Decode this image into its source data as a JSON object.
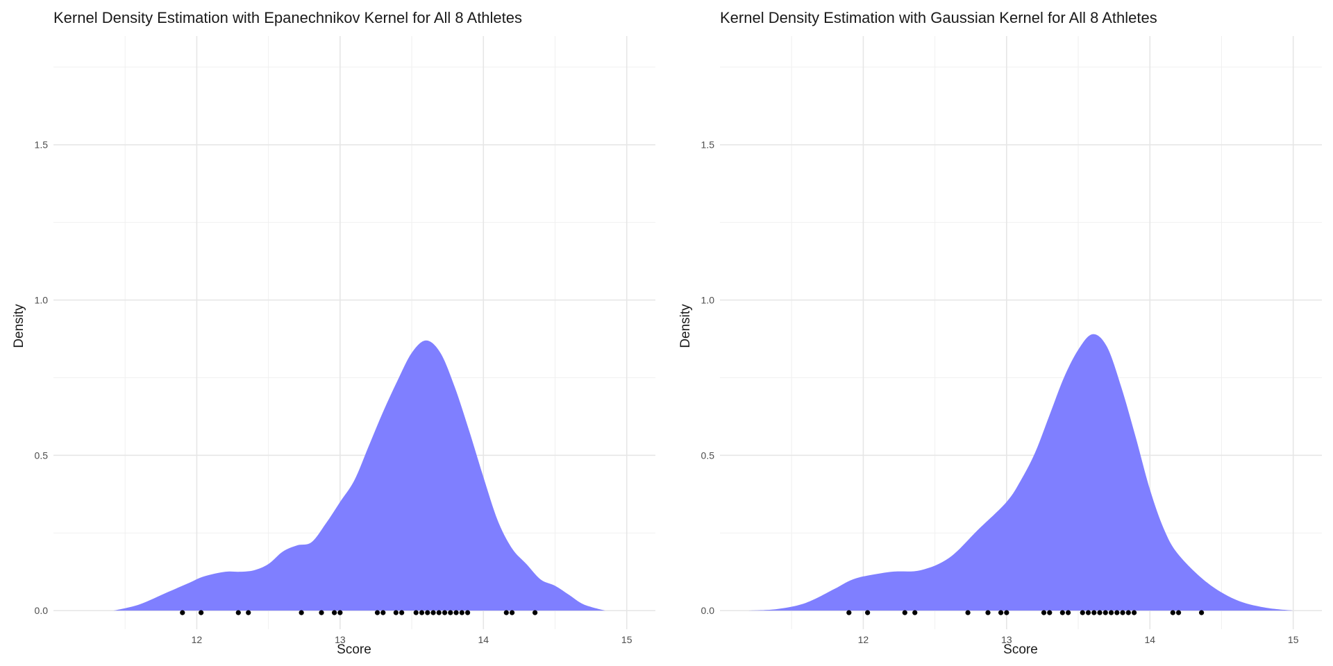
{
  "chart_data": [
    {
      "type": "area",
      "title": "Kernel Density Estimation with Epanechnikov Kernel for All 8 Athletes",
      "xlabel": "Score",
      "ylabel": "Density",
      "xlim": [
        11.0,
        15.2
      ],
      "ylim": [
        -0.06,
        1.85
      ],
      "x_ticks": [
        12,
        13,
        14,
        15
      ],
      "x_tick_labels": [
        "12",
        "13",
        "14",
        "15"
      ],
      "y_ticks": [
        0.0,
        0.5,
        1.0,
        1.5
      ],
      "y_tick_labels": [
        "0.0",
        "0.5",
        "1.0",
        "1.5"
      ],
      "grid": true,
      "fill_color": "#7f7fff",
      "point_color": "#000000",
      "density": {
        "x": [
          11.42,
          11.6,
          11.8,
          11.95,
          12.05,
          12.2,
          12.3,
          12.4,
          12.5,
          12.6,
          12.7,
          12.8,
          12.9,
          13.0,
          13.1,
          13.2,
          13.3,
          13.4,
          13.5,
          13.6,
          13.7,
          13.8,
          13.9,
          14.0,
          14.1,
          14.2,
          14.3,
          14.4,
          14.5,
          14.6,
          14.7,
          14.85
        ],
        "y": [
          0.0,
          0.02,
          0.06,
          0.09,
          0.11,
          0.125,
          0.125,
          0.13,
          0.15,
          0.19,
          0.21,
          0.22,
          0.28,
          0.35,
          0.42,
          0.53,
          0.64,
          0.74,
          0.83,
          0.87,
          0.83,
          0.72,
          0.58,
          0.43,
          0.29,
          0.2,
          0.15,
          0.1,
          0.08,
          0.05,
          0.02,
          0.0
        ]
      },
      "points": [
        11.9,
        12.03,
        12.29,
        12.36,
        12.73,
        12.87,
        12.96,
        13.0,
        13.26,
        13.3,
        13.39,
        13.43,
        13.53,
        13.57,
        13.61,
        13.65,
        13.69,
        13.73,
        13.77,
        13.81,
        13.85,
        13.89,
        14.16,
        14.2,
        14.36
      ]
    },
    {
      "type": "area",
      "title": "Kernel Density Estimation with Gaussian Kernel for All 8 Athletes",
      "xlabel": "Score",
      "ylabel": "Density",
      "xlim": [
        11.0,
        15.2
      ],
      "ylim": [
        -0.06,
        1.85
      ],
      "x_ticks": [
        12,
        13,
        14,
        15
      ],
      "x_tick_labels": [
        "12",
        "13",
        "14",
        "15"
      ],
      "y_ticks": [
        0.0,
        0.5,
        1.0,
        1.5
      ],
      "y_tick_labels": [
        "0.0",
        "0.5",
        "1.0",
        "1.5"
      ],
      "grid": true,
      "fill_color": "#7f7fff",
      "point_color": "#000000",
      "density": {
        "x": [
          11.2,
          11.4,
          11.6,
          11.8,
          11.9,
          12.0,
          12.2,
          12.4,
          12.6,
          12.8,
          13.0,
          13.1,
          13.2,
          13.3,
          13.4,
          13.5,
          13.6,
          13.7,
          13.8,
          13.9,
          14.0,
          14.1,
          14.2,
          14.4,
          14.6,
          14.8,
          15.0
        ],
        "y": [
          0.0,
          0.005,
          0.025,
          0.07,
          0.095,
          0.11,
          0.125,
          0.13,
          0.17,
          0.26,
          0.35,
          0.42,
          0.51,
          0.63,
          0.75,
          0.84,
          0.89,
          0.85,
          0.72,
          0.56,
          0.39,
          0.26,
          0.18,
          0.09,
          0.035,
          0.01,
          0.0
        ]
      },
      "points": [
        11.9,
        12.03,
        12.29,
        12.36,
        12.73,
        12.87,
        12.96,
        13.0,
        13.26,
        13.3,
        13.39,
        13.43,
        13.53,
        13.57,
        13.61,
        13.65,
        13.69,
        13.73,
        13.77,
        13.81,
        13.85,
        13.89,
        14.16,
        14.2,
        14.36
      ]
    }
  ]
}
